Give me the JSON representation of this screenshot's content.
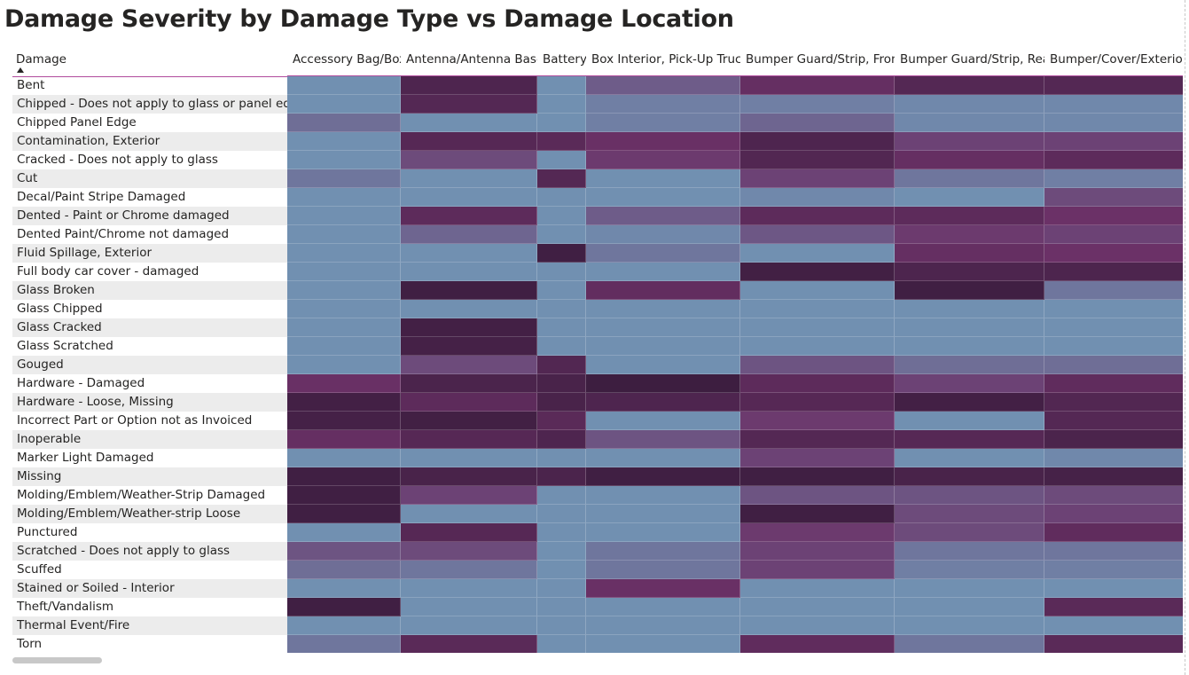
{
  "page": {
    "title": "Damage Severity by Damage Type vs Damage Location"
  },
  "chart_data": {
    "type": "heatmap",
    "title": "Damage Severity by Damage Type vs Damage Location",
    "row_header": "Damage",
    "columns": [
      "Accessory Bag/Box",
      "Antenna/Antenna Base",
      "Battery",
      "Box Interior, Pick-Up Truck",
      "Bumper Guard/Strip, Front",
      "Bumper Guard/Strip, Rear",
      "Bumper/Cover/Exterior, Front"
    ],
    "rows": [
      "Bent",
      "Chipped - Does not apply to glass or panel edge",
      "Chipped Panel Edge",
      "Contamination, Exterior",
      "Cracked - Does not apply to glass",
      "Cut",
      "Decal/Paint Stripe Damaged",
      "Dented - Paint or Chrome damaged",
      "Dented Paint/Chrome not damaged",
      "Fluid Spillage, Exterior",
      "Full body car cover - damaged",
      "Glass Broken",
      "Glass Chipped",
      "Glass Cracked",
      "Glass Scratched",
      "Gouged",
      "Hardware - Damaged",
      "Hardware - Loose, Missing",
      "Incorrect Part or Option not as Invoiced",
      "Inoperable",
      "Marker Light Damaged",
      "Missing",
      "Molding/Emblem/Weather-Strip Damaged",
      "Molding/Emblem/Weather-strip Loose",
      "Punctured",
      "Scratched - Does not apply to glass",
      "Scuffed",
      "Stained or Soiled - Interior",
      "Theft/Vandalism",
      "Thermal Event/Fire",
      "Torn"
    ],
    "values": [
      [
        0.05,
        0.85,
        0.05,
        0.35,
        0.65,
        0.8,
        0.8
      ],
      [
        0.05,
        0.8,
        0.05,
        0.15,
        0.15,
        0.1,
        0.1
      ],
      [
        0.25,
        0.05,
        0.05,
        0.15,
        0.3,
        0.1,
        0.1
      ],
      [
        0.05,
        0.78,
        0.75,
        0.62,
        0.85,
        0.5,
        0.5
      ],
      [
        0.05,
        0.45,
        0.05,
        0.55,
        0.82,
        0.65,
        0.72
      ],
      [
        0.2,
        0.05,
        0.8,
        0.05,
        0.5,
        0.2,
        0.15
      ],
      [
        0.05,
        0.05,
        0.05,
        0.05,
        0.1,
        0.05,
        0.45
      ],
      [
        0.05,
        0.72,
        0.05,
        0.35,
        0.72,
        0.72,
        0.6
      ],
      [
        0.05,
        0.3,
        0.05,
        0.1,
        0.38,
        0.55,
        0.5
      ],
      [
        0.05,
        0.05,
        0.97,
        0.2,
        0.05,
        0.65,
        0.6
      ],
      [
        0.05,
        0.05,
        0.05,
        0.05,
        0.96,
        0.86,
        0.86
      ],
      [
        0.05,
        0.97,
        0.05,
        0.68,
        0.05,
        0.97,
        0.2
      ],
      [
        0.05,
        0.05,
        0.05,
        0.05,
        0.05,
        0.05,
        0.05
      ],
      [
        0.05,
        0.95,
        0.05,
        0.05,
        0.05,
        0.05,
        0.05
      ],
      [
        0.05,
        0.93,
        0.05,
        0.05,
        0.05,
        0.05,
        0.05
      ],
      [
        0.05,
        0.45,
        0.82,
        0.05,
        0.4,
        0.25,
        0.25
      ],
      [
        0.62,
        0.88,
        0.9,
        1.0,
        0.72,
        0.5,
        0.7
      ],
      [
        0.95,
        0.72,
        0.9,
        0.85,
        0.78,
        0.95,
        0.82
      ],
      [
        0.93,
        0.96,
        0.75,
        0.05,
        0.55,
        0.05,
        0.8
      ],
      [
        0.65,
        0.78,
        0.85,
        0.4,
        0.8,
        0.78,
        0.88
      ],
      [
        0.05,
        0.05,
        0.05,
        0.05,
        0.5,
        0.05,
        0.1
      ],
      [
        0.97,
        0.9,
        0.88,
        0.97,
        0.97,
        0.9,
        0.92
      ],
      [
        0.97,
        0.5,
        0.05,
        0.05,
        0.4,
        0.4,
        0.45
      ],
      [
        0.97,
        0.05,
        0.05,
        0.05,
        0.97,
        0.45,
        0.5
      ],
      [
        0.05,
        0.78,
        0.05,
        0.05,
        0.55,
        0.45,
        0.7
      ],
      [
        0.4,
        0.45,
        0.05,
        0.2,
        0.5,
        0.2,
        0.2
      ],
      [
        0.25,
        0.2,
        0.05,
        0.2,
        0.5,
        0.15,
        0.15
      ],
      [
        0.05,
        0.05,
        0.05,
        0.62,
        0.05,
        0.05,
        0.05
      ],
      [
        0.97,
        0.05,
        0.05,
        0.05,
        0.05,
        0.05,
        0.75
      ],
      [
        0.05,
        0.05,
        0.05,
        0.05,
        0.05,
        0.05,
        0.05
      ],
      [
        0.2,
        0.75,
        0.05,
        0.05,
        0.7,
        0.2,
        0.75
      ]
    ],
    "color_scale": {
      "low": "#7199b8",
      "mid": "#6b3167",
      "high": "#3d1e40"
    },
    "alt_row_color": "#ececec",
    "grid_line_color": "#b04b9c"
  }
}
